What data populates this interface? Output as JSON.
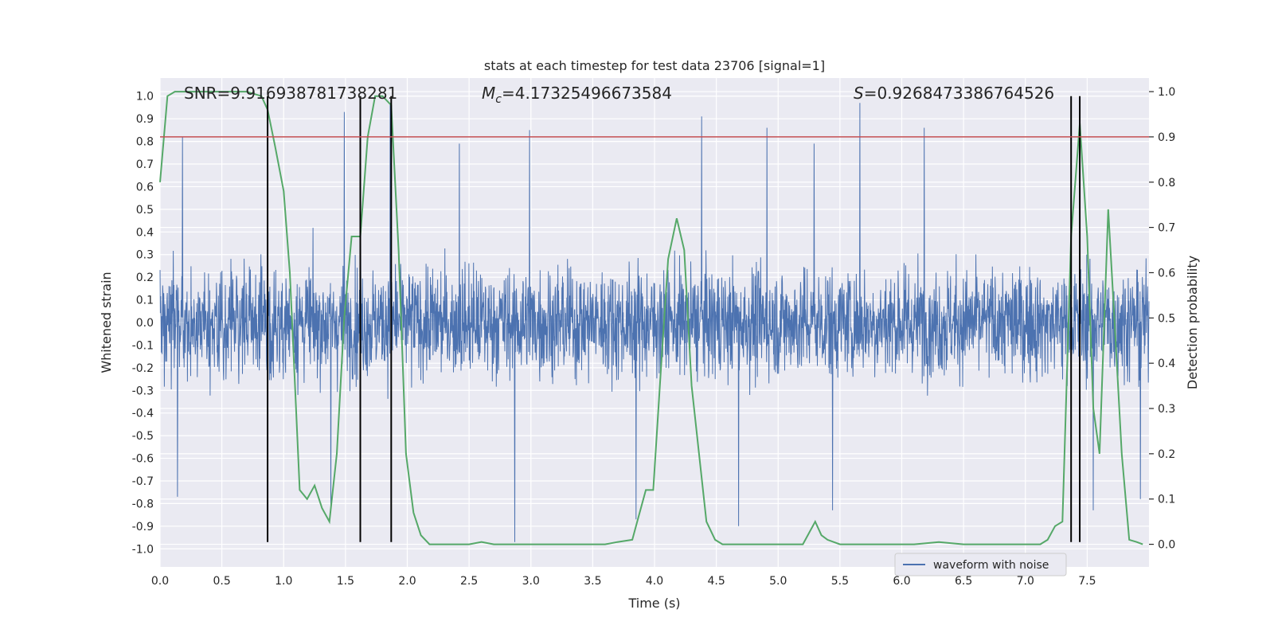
{
  "chart_data": {
    "type": "line",
    "title": "stats at each timestep for test data 23706 [signal=1]",
    "xlabel": "Time (s)",
    "ylabel_left": "Whitened strain",
    "ylabel_right": "Detection probability",
    "xlim": [
      0,
      8.0
    ],
    "ylim_left": [
      -1.08,
      1.08
    ],
    "ylim_right": [
      -0.05,
      1.03
    ],
    "x_ticks": [
      "0.0",
      "0.5",
      "1.0",
      "1.5",
      "2.0",
      "2.5",
      "3.0",
      "3.5",
      "4.0",
      "4.5",
      "5.0",
      "5.5",
      "6.0",
      "6.5",
      "7.0",
      "7.5"
    ],
    "y_left_ticks": [
      "-1.0",
      "-0.9",
      "-0.8",
      "-0.7",
      "-0.6",
      "-0.5",
      "-0.4",
      "-0.3",
      "-0.2",
      "-0.1",
      "0.0",
      "0.1",
      "0.2",
      "0.3",
      "0.4",
      "0.5",
      "0.6",
      "0.7",
      "0.8",
      "0.9",
      "1.0"
    ],
    "y_right_ticks": [
      "0.0",
      "0.1",
      "0.2",
      "0.3",
      "0.4",
      "0.5",
      "0.6",
      "0.7",
      "0.8",
      "0.9",
      "1.0"
    ],
    "grid": true,
    "annotations": {
      "snr": "SNR=9.916938781738281",
      "mc_symbol": "M",
      "mc_sub": "c",
      "mc_value": "=4.17325496673584",
      "s_symbol": "S",
      "s_value": "=0.9268473386764526"
    },
    "threshold": {
      "value": 0.9,
      "color": "#c44e52"
    },
    "vertical_lines": {
      "x": [
        0.87,
        1.62,
        1.87,
        7.37,
        7.44
      ],
      "ymin": -0.97,
      "ymax": 1.0,
      "color": "#000000"
    },
    "series": [
      {
        "name": "waveform with noise",
        "axis": "left",
        "color": "#4c72b0",
        "duration": 8.0,
        "typical_amplitude": 0.4,
        "peaks": [
          {
            "x": 0.18,
            "y": 0.82
          },
          {
            "x": 0.14,
            "y": -0.77
          },
          {
            "x": 1.49,
            "y": 0.93
          },
          {
            "x": 1.62,
            "y": 0.81
          },
          {
            "x": 1.86,
            "y": 0.97
          },
          {
            "x": 2.42,
            "y": 0.79
          },
          {
            "x": 2.87,
            "y": -0.97
          },
          {
            "x": 4.38,
            "y": 0.91
          },
          {
            "x": 4.68,
            "y": -0.9
          },
          {
            "x": 4.91,
            "y": 0.86
          },
          {
            "x": 5.44,
            "y": -0.83
          },
          {
            "x": 5.66,
            "y": 0.97
          },
          {
            "x": 6.18,
            "y": 0.86
          },
          {
            "x": 7.44,
            "y": 0.86
          },
          {
            "x": 7.55,
            "y": -0.83
          },
          {
            "x": 1.38,
            "y": -0.84
          },
          {
            "x": 3.85,
            "y": -0.87
          },
          {
            "x": 5.29,
            "y": 0.79
          },
          {
            "x": 2.99,
            "y": 0.85
          },
          {
            "x": 7.93,
            "y": -0.78
          }
        ]
      },
      {
        "name": "",
        "axis": "right",
        "color": "#55a868",
        "x": [
          0.0,
          0.06,
          0.12,
          0.25,
          0.4,
          0.55,
          0.7,
          0.82,
          0.87,
          0.93,
          1.0,
          1.05,
          1.1,
          1.13,
          1.19,
          1.25,
          1.31,
          1.37,
          1.43,
          1.49,
          1.55,
          1.62,
          1.68,
          1.74,
          1.8,
          1.87,
          1.93,
          1.99,
          2.05,
          2.11,
          2.18,
          2.3,
          2.5,
          2.6,
          2.7,
          3.0,
          3.2,
          3.5,
          3.6,
          3.7,
          3.82,
          3.87,
          3.93,
          3.99,
          4.05,
          4.11,
          4.18,
          4.24,
          4.3,
          4.36,
          4.42,
          4.49,
          4.55,
          4.61,
          4.7,
          4.8,
          5.0,
          5.1,
          5.2,
          5.3,
          5.35,
          5.4,
          5.5,
          6.0,
          6.1,
          6.3,
          6.5,
          6.8,
          7.0,
          7.12,
          7.18,
          7.24,
          7.3,
          7.37,
          7.44,
          7.5,
          7.55,
          7.6,
          7.67,
          7.72,
          7.78,
          7.84,
          7.9,
          7.95
        ],
        "y": [
          0.8,
          0.99,
          1.0,
          1.0,
          1.0,
          1.0,
          1.0,
          0.99,
          0.96,
          0.88,
          0.78,
          0.6,
          0.3,
          0.12,
          0.1,
          0.13,
          0.08,
          0.05,
          0.2,
          0.5,
          0.68,
          0.68,
          0.9,
          0.99,
          0.99,
          0.97,
          0.65,
          0.2,
          0.07,
          0.02,
          0.0,
          0.0,
          0.0,
          0.005,
          0.0,
          0.0,
          0.0,
          0.0,
          0.0,
          0.005,
          0.01,
          0.06,
          0.12,
          0.12,
          0.38,
          0.63,
          0.72,
          0.65,
          0.35,
          0.2,
          0.05,
          0.01,
          0.0,
          0.0,
          0.0,
          0.0,
          0.0,
          0.0,
          0.0,
          0.05,
          0.02,
          0.01,
          0.0,
          0.0,
          0.0,
          0.005,
          0.0,
          0.0,
          0.0,
          0.0,
          0.01,
          0.04,
          0.05,
          0.68,
          0.93,
          0.68,
          0.3,
          0.2,
          0.74,
          0.5,
          0.2,
          0.01,
          0.005,
          0.0
        ]
      }
    ],
    "legend": {
      "placement": "lower-right",
      "entries": [
        "waveform with noise"
      ]
    }
  }
}
